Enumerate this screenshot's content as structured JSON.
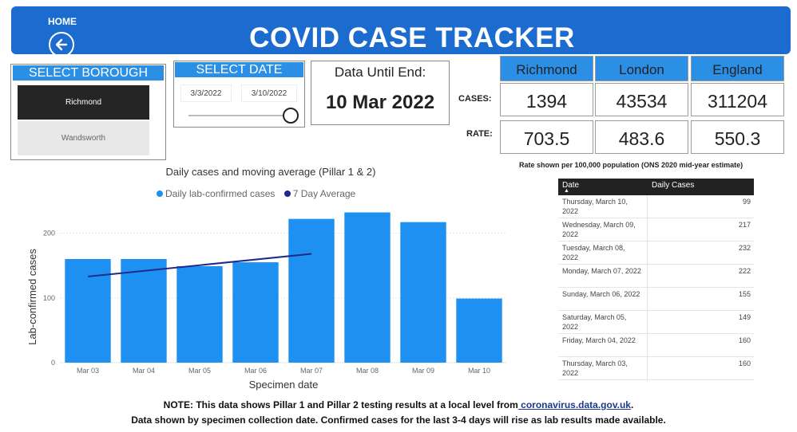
{
  "header": {
    "home_label": "HOME",
    "title": "COVID CASE TRACKER"
  },
  "borough": {
    "heading": "SELECT BOROUGH",
    "items": [
      {
        "label": "Richmond",
        "selected": true
      },
      {
        "label": "Wandsworth",
        "selected": false
      }
    ]
  },
  "date_select": {
    "heading": "SELECT DATE",
    "start": "3/3/2022",
    "end": "3/10/2022"
  },
  "data_until": {
    "label": "Data Until End:",
    "value": "10 Mar 2022"
  },
  "summary": {
    "areas": [
      "Richmond",
      "London",
      "England"
    ],
    "cases_label": "CASES:",
    "rate_label": "RATE:",
    "cases": [
      "1394",
      "43534",
      "311204"
    ],
    "rates": [
      "703.5",
      "483.6",
      "550.3"
    ],
    "rate_note": "Rate shown per 100,000 population (ONS 2020 mid-year estimate)"
  },
  "chart_data": {
    "type": "bar",
    "title": "Daily cases and moving average (Pillar 1 & 2)",
    "xlabel": "Specimen date",
    "ylabel": "Lab-confirmed cases",
    "categories": [
      "Mar 03",
      "Mar 04",
      "Mar 05",
      "Mar 06",
      "Mar 07",
      "Mar 08",
      "Mar 09",
      "Mar 10"
    ],
    "yticks": [
      0,
      100,
      200
    ],
    "ylim": [
      0,
      240
    ],
    "grid": true,
    "legend_position": "top",
    "series": [
      {
        "name": "Daily lab-confirmed cases",
        "kind": "bar",
        "color": "#1e90f2",
        "values": [
          160,
          160,
          149,
          155,
          222,
          232,
          217,
          99
        ]
      },
      {
        "name": "7 Day Average",
        "kind": "line",
        "color": "#1f2a8c",
        "values": [
          133,
          null,
          null,
          null,
          168,
          null,
          null,
          null
        ]
      }
    ]
  },
  "daily_table": {
    "columns": [
      "Date",
      "Daily Cases"
    ],
    "rows": [
      {
        "date": "Thursday, March 10, 2022",
        "value": "99"
      },
      {
        "date": "Wednesday, March 09, 2022",
        "value": "217"
      },
      {
        "date": "Tuesday, March 08, 2022",
        "value": "232"
      },
      {
        "date": "Monday, March 07, 2022",
        "value": "222"
      },
      {
        "date": "Sunday, March 06, 2022",
        "value": "155"
      },
      {
        "date": "Saturday, March 05, 2022",
        "value": "149"
      },
      {
        "date": "Friday, March 04, 2022",
        "value": "160"
      },
      {
        "date": "Thursday, March 03, 2022",
        "value": "160"
      }
    ]
  },
  "notes": {
    "line1_prefix": "NOTE: This data shows Pillar 1 and Pillar 2 testing results at a local level from",
    "line1_link": " coronavirus.data.gov.uk",
    "line1_suffix": ".",
    "line2": "Data shown by specimen collection date. Confirmed cases for the last 3-4 days will rise as lab results made available."
  },
  "colors": {
    "header_bg": "#1c6cd0",
    "accent": "#2b8fe6",
    "bar": "#1e90f2",
    "avg_line": "#1f2a8c",
    "selected_item": "#252525"
  },
  "icons": {
    "home": "back-arrow-circle-icon"
  }
}
